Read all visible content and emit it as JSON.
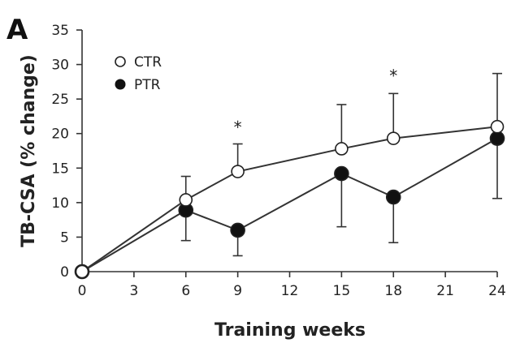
{
  "panel_label": "A",
  "chart_data": {
    "type": "line",
    "xlabel": "Training weeks",
    "ylabel": "TB-CSA (% change)",
    "xlim": [
      0,
      24
    ],
    "ylim": [
      0,
      35
    ],
    "xticks": [
      0,
      3,
      6,
      9,
      12,
      15,
      18,
      21,
      24
    ],
    "yticks": [
      0,
      5,
      10,
      15,
      20,
      25,
      30,
      35
    ],
    "grid": false,
    "legend_position": "top-left",
    "x": [
      0,
      6,
      9,
      15,
      18,
      24
    ],
    "series": [
      {
        "name": "CTR",
        "marker": "open-circle",
        "values": [
          0,
          10.4,
          14.5,
          17.8,
          19.3,
          21.0
        ],
        "error_upper": [
          null,
          13.8,
          18.5,
          24.2,
          25.8,
          28.7
        ]
      },
      {
        "name": "PTR",
        "marker": "filled-circle",
        "values": [
          0,
          8.9,
          6.0,
          14.2,
          10.8,
          19.3
        ],
        "error_lower": [
          null,
          4.5,
          2.3,
          6.5,
          4.2,
          10.6
        ]
      }
    ],
    "annotations": [
      {
        "text": "*",
        "x": 9,
        "y": 21
      },
      {
        "text": "*",
        "x": 18,
        "y": 28.5
      }
    ]
  }
}
